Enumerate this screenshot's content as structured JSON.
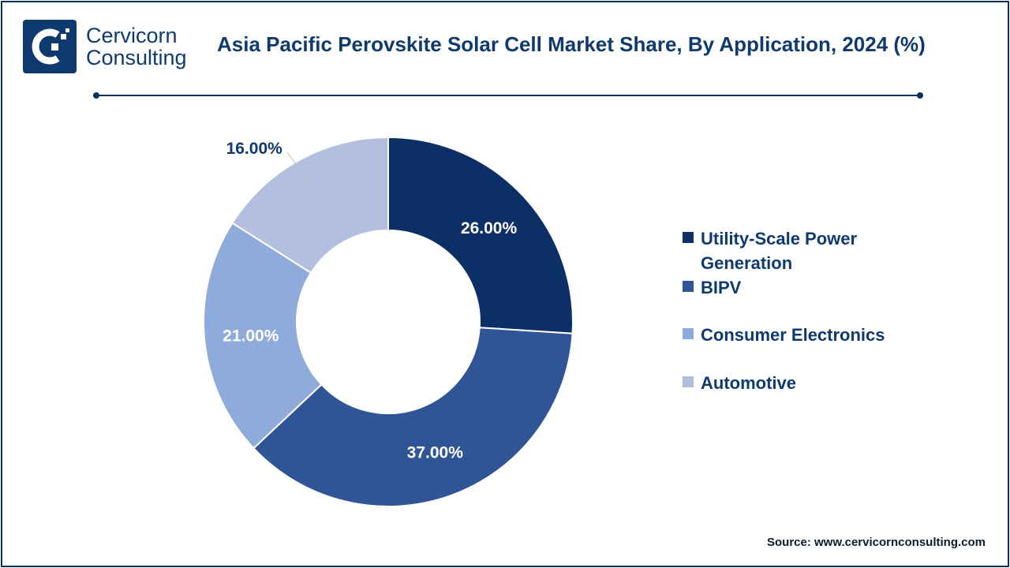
{
  "brand": {
    "line1": "Cervicorn",
    "line2": "Consulting",
    "color": "#0e3a70"
  },
  "title": "Asia Pacific Perovskite Solar Cell Market Share, By Application, 2024 (%)",
  "source": "Source: www.cervicornconsulting.com",
  "chart_data": {
    "type": "pie",
    "variant": "donut",
    "title": "Asia Pacific Perovskite Solar Cell Market Share, By Application, 2024 (%)",
    "categories": [
      "Utility-Scale Power Generation",
      "BIPV",
      "Consumer Electronics",
      "Automotive"
    ],
    "values": [
      26,
      37,
      21,
      16
    ],
    "labels": [
      "26.00%",
      "37.00%",
      "21.00%",
      "16.00%"
    ],
    "colors": [
      "#0c2f66",
      "#2f5597",
      "#8fabdc",
      "#b4bedf"
    ],
    "unit": "%",
    "legend": "right",
    "start": "top, clockwise"
  }
}
